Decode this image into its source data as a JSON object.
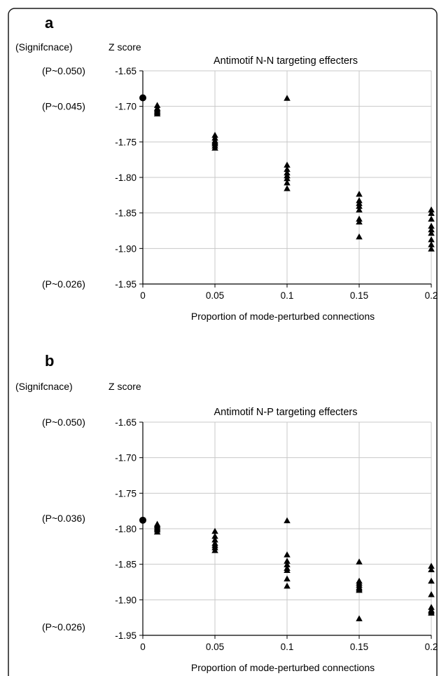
{
  "chart_data": [
    {
      "type": "scatter",
      "panel_label": "a",
      "significance_label": "(Signifcnace)",
      "ylabel": "Z score",
      "title": "Antimotif N-N targeting effecters",
      "xlabel": "Proportion of mode-perturbed connections",
      "x_ticks": [
        "0",
        "0.05",
        "0.1",
        "0.15",
        "0.2"
      ],
      "x_ticks_values": [
        0,
        0.05,
        0.1,
        0.15,
        0.2
      ],
      "y_ticks": [
        "-1.65",
        "-1.70",
        "-1.75",
        "-1.80",
        "-1.85",
        "-1.90",
        "-1.95"
      ],
      "y_ticks_values": [
        -1.65,
        -1.7,
        -1.75,
        -1.8,
        -1.85,
        -1.9,
        -1.95
      ],
      "xlim": [
        0,
        0.2
      ],
      "ylim": [
        -1.95,
        -1.65
      ],
      "grid": "vertical",
      "p_annotations": [
        {
          "text": "(P~0.050)",
          "y": -1.65
        },
        {
          "text": "(P~0.045)",
          "y": -1.7
        },
        {
          "text": "(P~0.026)",
          "y": -1.95
        }
      ],
      "series": [
        {
          "marker": "circle",
          "x": [
            0
          ],
          "y": [
            -1.688
          ]
        },
        {
          "marker": "triangle",
          "x": [
            0.01,
            0.01,
            0.01,
            0.01,
            0.01,
            0.01,
            0.05,
            0.05,
            0.05,
            0.05,
            0.05,
            0.05,
            0.05,
            0.1,
            0.1,
            0.1,
            0.1,
            0.1,
            0.1,
            0.1,
            0.1,
            0.15,
            0.15,
            0.15,
            0.15,
            0.15,
            0.15,
            0.15,
            0.15,
            0.2,
            0.2,
            0.2,
            0.2,
            0.2,
            0.2,
            0.2,
            0.2,
            0.2
          ],
          "y": [
            -1.698,
            -1.702,
            -1.704,
            -1.706,
            -1.708,
            -1.71,
            -1.74,
            -1.744,
            -1.748,
            -1.75,
            -1.752,
            -1.755,
            -1.758,
            -1.688,
            -1.782,
            -1.788,
            -1.793,
            -1.797,
            -1.801,
            -1.807,
            -1.815,
            -1.823,
            -1.832,
            -1.836,
            -1.84,
            -1.845,
            -1.858,
            -1.862,
            -1.883,
            -1.845,
            -1.85,
            -1.858,
            -1.868,
            -1.873,
            -1.878,
            -1.887,
            -1.894,
            -1.9
          ]
        }
      ]
    },
    {
      "type": "scatter",
      "panel_label": "b",
      "significance_label": "(Signifcnace)",
      "ylabel": "Z score",
      "title": "Antimotif N-P targeting effecters",
      "xlabel": "Proportion of mode-perturbed connections",
      "x_ticks": [
        "0",
        "0.05",
        "0.1",
        "0.15",
        "0.2"
      ],
      "x_ticks_values": [
        0,
        0.05,
        0.1,
        0.15,
        0.2
      ],
      "y_ticks": [
        "-1.65",
        "-1.70",
        "-1.75",
        "-1.80",
        "-1.85",
        "-1.90",
        "-1.95"
      ],
      "y_ticks_values": [
        -1.65,
        -1.7,
        -1.75,
        -1.8,
        -1.85,
        -1.9,
        -1.95
      ],
      "xlim": [
        0,
        0.2
      ],
      "ylim": [
        -1.95,
        -1.65
      ],
      "grid": "vertical",
      "p_annotations": [
        {
          "text": "(P~0.050)",
          "y": -1.65
        },
        {
          "text": "(P~0.036)",
          "y": -1.785
        },
        {
          "text": "(P~0.026)",
          "y": -1.938
        }
      ],
      "series": [
        {
          "marker": "circle",
          "x": [
            0
          ],
          "y": [
            -1.788
          ]
        },
        {
          "marker": "triangle",
          "x": [
            0.01,
            0.01,
            0.01,
            0.01,
            0.01,
            0.01,
            0.05,
            0.05,
            0.05,
            0.05,
            0.05,
            0.05,
            0.05,
            0.1,
            0.1,
            0.1,
            0.1,
            0.1,
            0.1,
            0.1,
            0.1,
            0.15,
            0.15,
            0.15,
            0.15,
            0.15,
            0.15,
            0.15,
            0.15,
            0.2,
            0.2,
            0.2,
            0.2,
            0.2,
            0.2,
            0.2,
            0.2
          ],
          "y": [
            -1.793,
            -1.795,
            -1.797,
            -1.799,
            -1.801,
            -1.804,
            -1.803,
            -1.81,
            -1.815,
            -1.82,
            -1.823,
            -1.826,
            -1.83,
            -1.788,
            -1.836,
            -1.845,
            -1.85,
            -1.855,
            -1.858,
            -1.87,
            -1.88,
            -1.846,
            -1.873,
            -1.876,
            -1.879,
            -1.882,
            -1.884,
            -1.886,
            -1.926,
            -1.852,
            -1.857,
            -1.873,
            -1.892,
            -1.91,
            -1.914,
            -1.916,
            -1.918
          ]
        }
      ]
    }
  ]
}
